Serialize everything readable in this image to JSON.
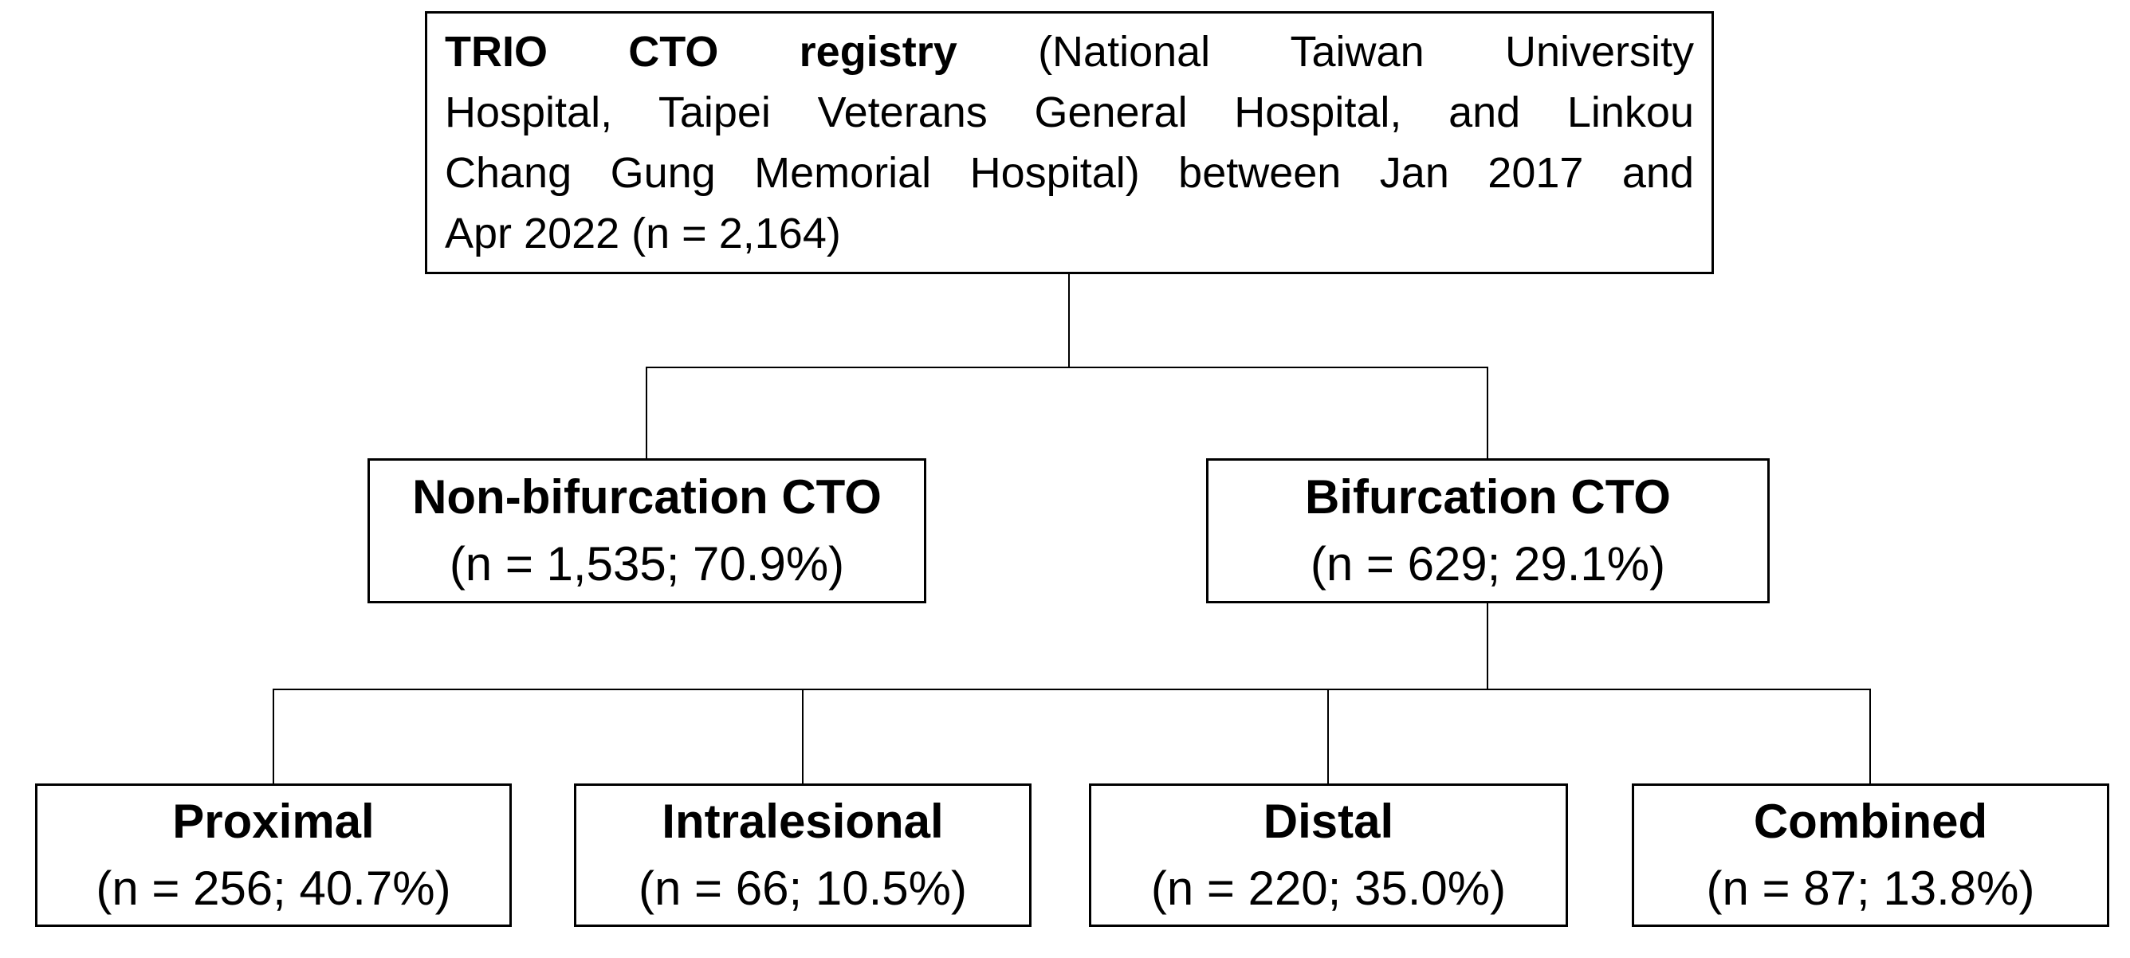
{
  "diagram": {
    "root": {
      "line1_bold": "TRIO CTO registry",
      "line1_rest": "(National Taiwan University",
      "line2": "Hospital, Taipei Veterans General Hospital, and Linkou",
      "line3": "Chang Gung Memorial Hospital) between Jan 2017 and",
      "line4": "Apr 2022 (n = 2,164)"
    },
    "level2": [
      {
        "title": "Non-bifurcation CTO",
        "stat": "(n = 1,535; 70.9%)"
      },
      {
        "title": "Bifurcation CTO",
        "stat": "(n = 629; 29.1%)"
      }
    ],
    "level3": [
      {
        "title": "Proximal",
        "stat": "(n = 256; 40.7%)"
      },
      {
        "title": "Intralesional",
        "stat": "(n = 66; 10.5%)"
      },
      {
        "title": "Distal",
        "stat": "(n = 220; 35.0%)"
      },
      {
        "title": "Combined",
        "stat": "(n = 87; 13.8%)"
      }
    ],
    "colors": {
      "line": "#000000",
      "text": "#000000",
      "background": "#ffffff"
    }
  }
}
